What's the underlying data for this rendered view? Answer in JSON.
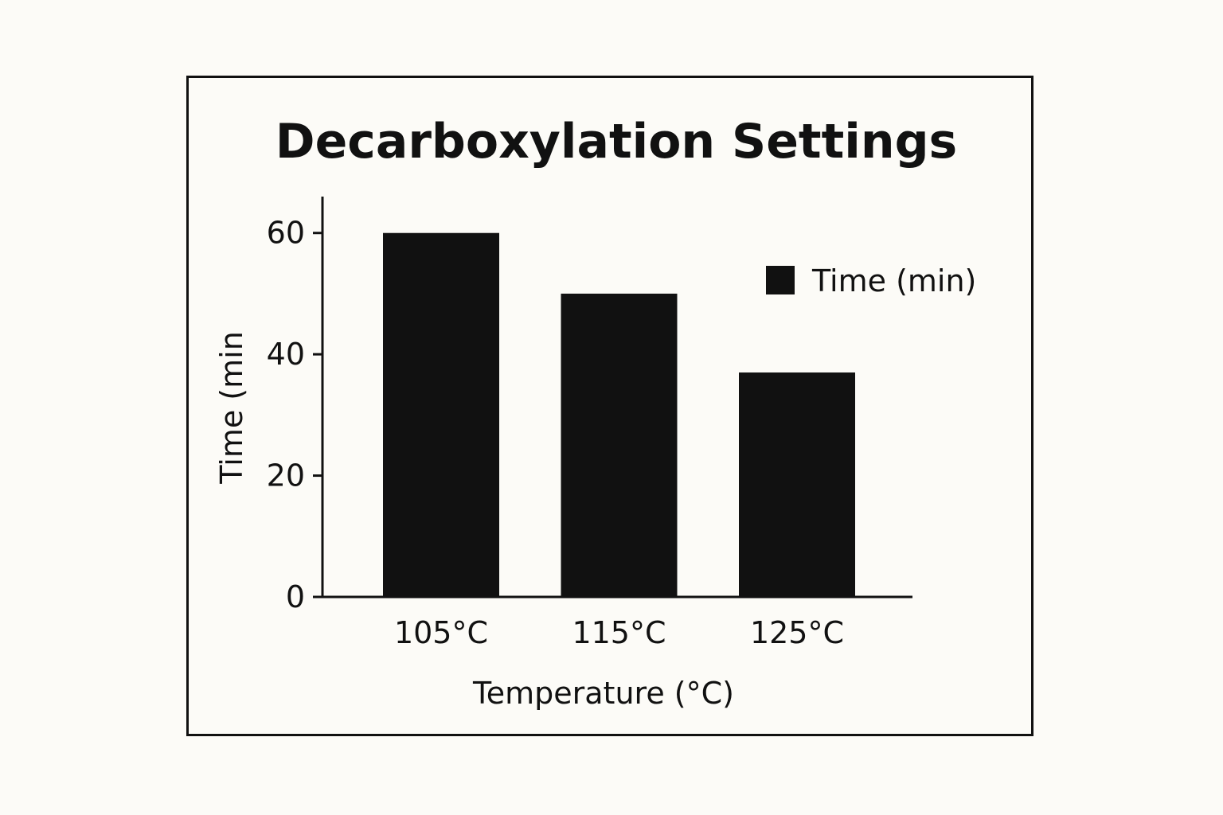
{
  "chart_data": {
    "type": "bar",
    "title": "Decarboxylation Settings",
    "xlabel": "Temperature (°C)",
    "ylabel": "Time (min",
    "categories": [
      "105°C",
      "115°C",
      "125°C"
    ],
    "series": [
      {
        "name": "Time (min)",
        "values": [
          60,
          50,
          37
        ],
        "color": "#111111"
      }
    ],
    "ylim": [
      0,
      66
    ],
    "yticks": [
      0,
      20,
      40,
      60
    ],
    "yticklabels": [
      "0",
      "20",
      "40",
      "60"
    ],
    "grid": false,
    "legend": "top-right"
  },
  "colors": {
    "background": "#fcfbf7",
    "ink": "#111111"
  }
}
